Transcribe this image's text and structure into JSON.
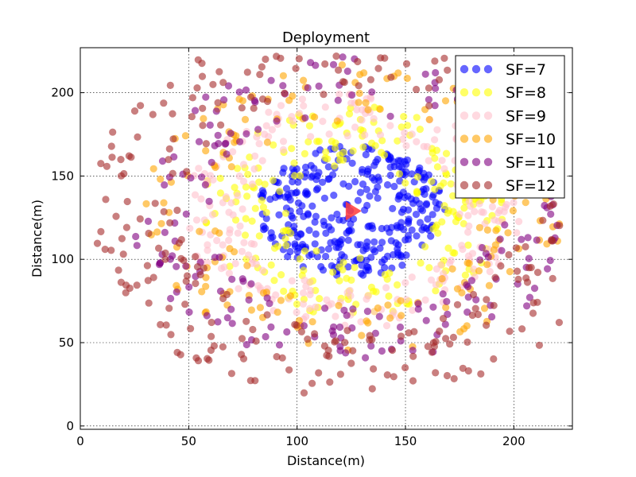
{
  "chart_data": {
    "type": "scatter",
    "title": "Deployment",
    "xlabel": "Distance(m)",
    "ylabel": "Distance(m)",
    "xlim": [
      0,
      227
    ],
    "ylim": [
      -2,
      227
    ],
    "xticks": [
      0,
      50,
      100,
      150,
      200
    ],
    "yticks": [
      0,
      50,
      100,
      150,
      200
    ],
    "grid": true,
    "legend_position": "top-right",
    "gateway": {
      "x": 125,
      "y": 129,
      "color": "#ff3b3b",
      "marker": "triangle"
    },
    "series": [
      {
        "name": "SF=7",
        "color": "#0000ff",
        "radius_range_m": [
          0,
          40
        ],
        "approx_points": 330
      },
      {
        "name": "SF=8",
        "color": "#ffff00",
        "radius_range_m": [
          28,
          65
        ],
        "approx_points": 230
      },
      {
        "name": "SF=9",
        "color": "#ffc0cb",
        "radius_range_m": [
          45,
          72
        ],
        "approx_points": 240
      },
      {
        "name": "SF=10",
        "color": "#ffa500",
        "radius_range_m": [
          55,
          90
        ],
        "approx_points": 160
      },
      {
        "name": "SF=11",
        "color": "#800080",
        "radius_range_m": [
          60,
          95
        ],
        "approx_points": 200
      },
      {
        "name": "SF=12",
        "color": "#a52a2a",
        "radius_range_m": [
          72,
          115
        ],
        "approx_points": 320
      }
    ]
  }
}
